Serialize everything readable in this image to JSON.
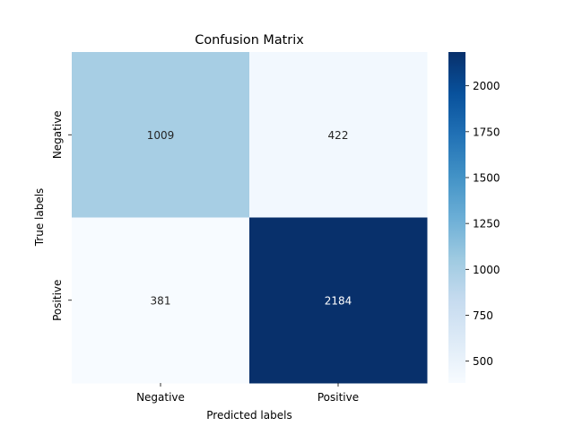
{
  "chart_data": {
    "type": "heatmap",
    "title": "Confusion Matrix",
    "xlabel": "Predicted labels",
    "ylabel": "True labels",
    "x_categories": [
      "Negative",
      "Positive"
    ],
    "y_categories": [
      "Negative",
      "Positive"
    ],
    "values": [
      [
        1009,
        422
      ],
      [
        381,
        2184
      ]
    ],
    "colormap": "Blues",
    "colorbar": {
      "range": [
        381,
        2184
      ],
      "ticks": [
        500,
        750,
        1000,
        1250,
        1500,
        1750,
        2000
      ]
    },
    "colors": {
      "min": "#f7fbff",
      "max": "#08306b",
      "text_light": "#ffffff",
      "text_dark": "#262626"
    }
  }
}
